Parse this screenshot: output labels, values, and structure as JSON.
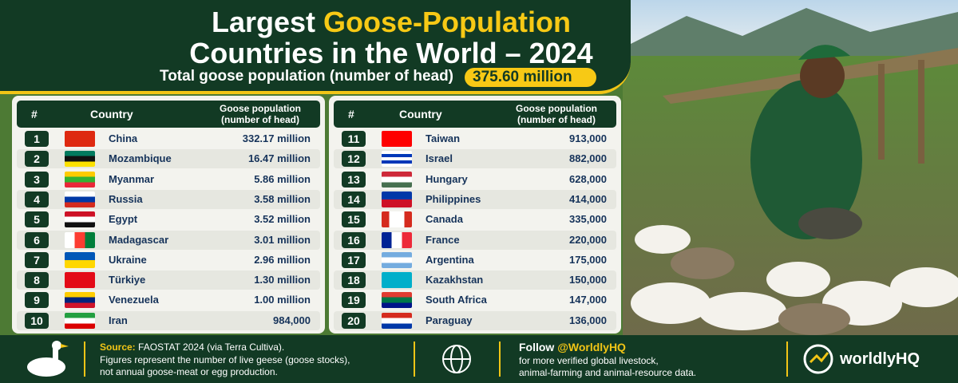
{
  "header": {
    "title_start": "Largest",
    "title_highlight": "Goose-Population",
    "title_line2": "Countries in the World – 2024",
    "subtitle": "Total goose population (number of head)",
    "total": "375.60 million"
  },
  "tables": [
    {
      "headers": {
        "rank": "#",
        "country": "Country",
        "value": [
          "Goose population",
          "(number of head)"
        ]
      },
      "rows": [
        [
          "1",
          "China",
          "332.17 million"
        ],
        [
          "2",
          "Mozambique",
          "16.47 million"
        ],
        [
          "3",
          "Myanmar",
          "5.86 million"
        ],
        [
          "4",
          "Russia",
          "3.58 million"
        ],
        [
          "5",
          "Egypt",
          "3.52 million"
        ],
        [
          "6",
          "Madagascar",
          "3.01 million"
        ],
        [
          "7",
          "Ukraine",
          "2.96 million"
        ],
        [
          "8",
          "Türkiye",
          "1.30 million"
        ],
        [
          "9",
          "Venezuela",
          "1.00 million"
        ],
        [
          "10",
          "Iran",
          "984,000"
        ]
      ]
    },
    {
      "headers": {
        "rank": "#",
        "country": "Country",
        "value": [
          "Goose population",
          "(number of head)"
        ]
      },
      "rows": [
        [
          "11",
          "Taiwan",
          "913,000"
        ],
        [
          "12",
          "Israel",
          "882,000"
        ],
        [
          "13",
          "Hungary",
          "628,000"
        ],
        [
          "14",
          "Philippines",
          "414,000"
        ],
        [
          "15",
          "Canada",
          "335,000"
        ],
        [
          "16",
          "France",
          "220,000"
        ],
        [
          "17",
          "Argentina",
          "175,000"
        ],
        [
          "18",
          "Kazakhstan",
          "150,000"
        ],
        [
          "19",
          "South Africa",
          "147,000"
        ],
        [
          "20",
          "Paraguay",
          "136,000"
        ]
      ]
    }
  ],
  "footer": {
    "source_label": "Source:",
    "source": "FAOSTAT 2024 (via Terra Cultiva).",
    "note": [
      "Figures represent the number of live geese (goose stocks),",
      "not annual goose-meat or egg production."
    ],
    "follow_label": "Follow",
    "handle": "@WorldlyHQ",
    "follow_text": [
      "for more verified global livestock,",
      "animal-farming and animal-resource data."
    ],
    "logo": "worldlyHQ"
  }
}
